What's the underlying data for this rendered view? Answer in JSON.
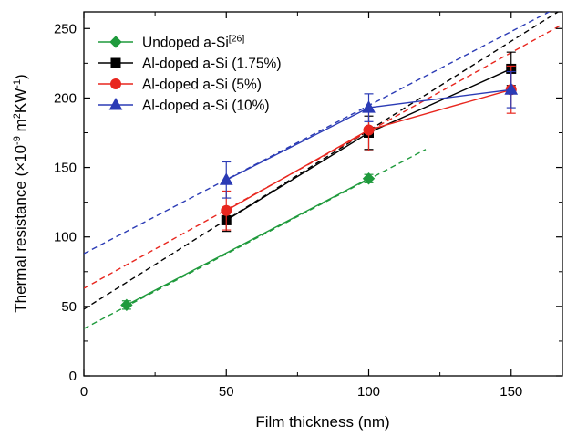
{
  "chart_data": {
    "type": "line",
    "title": "",
    "xlabel": "Film thickness (nm)",
    "ylabel": {
      "pre": "Thermal resistance (×10",
      "exp1": "-9",
      "mid": " m",
      "exp2": "2",
      "post": "KW",
      "exp3": "-1",
      "close": ")"
    },
    "xlim": [
      0,
      168
    ],
    "ylim": [
      0,
      262
    ],
    "x_ticks": [
      0,
      50,
      100,
      150
    ],
    "y_ticks": [
      0,
      50,
      100,
      150,
      200,
      250
    ],
    "grid": false,
    "legend_position": "top-left",
    "series": [
      {
        "name": "Undoped a-Si",
        "name_sup": "[26]",
        "color": "#1f9a3c",
        "marker": "diamond",
        "x": [
          15,
          100
        ],
        "y": [
          51,
          142
        ],
        "err": [
          3,
          3
        ],
        "fit": {
          "x": [
            0,
            120
          ],
          "y": [
            34,
            163
          ]
        }
      },
      {
        "name": "Al-doped a-Si (1.75%)",
        "color": "#000000",
        "marker": "square",
        "x": [
          50,
          100,
          150
        ],
        "y": [
          112,
          175,
          221
        ],
        "err": [
          8,
          12,
          12
        ],
        "fit": {
          "x": [
            0,
            168
          ],
          "y": [
            48,
            264
          ]
        }
      },
      {
        "name": "Al-doped a-Si (5%)",
        "color": "#e8261e",
        "marker": "circle",
        "x": [
          50,
          100,
          150
        ],
        "y": [
          119,
          177,
          206
        ],
        "err": [
          14,
          15,
          17
        ],
        "fit": {
          "x": [
            0,
            168
          ],
          "y": [
            63,
            253
          ]
        }
      },
      {
        "name": "Al-doped a-Si (10%)",
        "color": "#2b3bb5",
        "marker": "triangle",
        "x": [
          50,
          100,
          150
        ],
        "y": [
          141,
          193,
          206
        ],
        "err": [
          13,
          10,
          13
        ],
        "fit": {
          "x": [
            0,
            168
          ],
          "y": [
            88,
            267
          ]
        }
      }
    ]
  }
}
